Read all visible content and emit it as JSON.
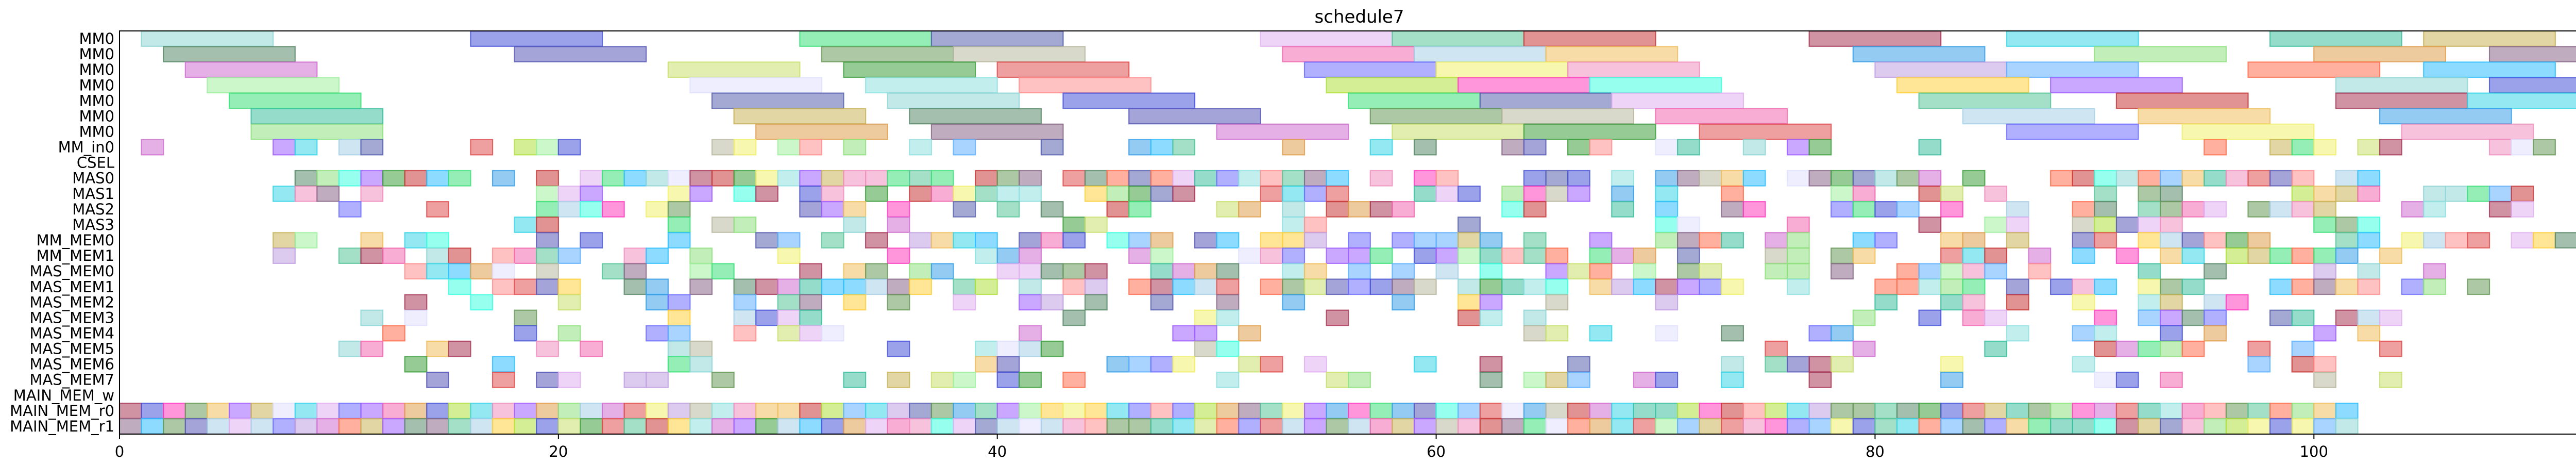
{
  "chart_data": {
    "type": "gantt",
    "title": "schedule7",
    "xlabel": "",
    "ylabel": "",
    "xlim": [
      0,
      113
    ],
    "x_ticks": [
      0,
      20,
      40,
      60,
      80,
      100
    ],
    "rows": [
      "MM0",
      "MM0",
      "MM0",
      "MM0",
      "MM0",
      "MM0",
      "MM0",
      "MM_in0",
      "CSEL",
      "MAS0",
      "MAS1",
      "MAS2",
      "MAS3",
      "MM_MEM0",
      "MM_MEM1",
      "MAS_MEM0",
      "MAS_MEM1",
      "MAS_MEM2",
      "MAS_MEM3",
      "MAS_MEM4",
      "MAS_MEM5",
      "MAS_MEM6",
      "MAS_MEM7",
      "MAIN_MEM_w",
      "MAIN_MEM_r0",
      "MAIN_MEM_r1"
    ],
    "grid": false,
    "palette": [
      "#8fd6d6",
      "#4a56d8",
      "#3ee07a",
      "#5a63b0",
      "#e0b0f0",
      "#5ac69a",
      "#c83a3a",
      "#a83a5a",
      "#3ad6e8",
      "#40c0a0",
      "#c8b45a",
      "#5a8a6a",
      "#5a5ab8",
      "#6a9a5a",
      "#b8b8a0",
      "#f06ab0",
      "#a8d0e8",
      "#f0c060",
      "#3aa0e8",
      "#90e080",
      "#e0a050",
      "#8a6a8a",
      "#d070d0",
      "#c8e070",
      "#40a040",
      "#e05050",
      "#7070ff",
      "#f0f070",
      "#f090c0",
      "#c0a0e0",
      "#60b0ff",
      "#ff7050",
      "#30c0ff",
      "#a0f0a0",
      "#e0e0ff",
      "#90e0e0",
      "#ff9090",
      "#b0e040",
      "#ff40c0",
      "#40ffe0",
      "#ffd040",
      "#a060ff"
    ],
    "series": [
      {
        "row": 0,
        "tasks": [
          [
            1,
            7,
            0
          ],
          [
            16,
            22,
            1
          ],
          [
            31,
            37,
            2
          ],
          [
            37,
            43,
            3
          ],
          [
            52,
            58,
            4
          ],
          [
            58,
            64,
            5
          ],
          [
            64,
            70,
            6
          ],
          [
            77,
            83,
            7
          ],
          [
            86,
            92,
            8
          ],
          [
            98,
            104,
            9
          ],
          [
            105,
            111,
            10
          ]
        ]
      },
      {
        "row": 1,
        "tasks": [
          [
            2,
            8,
            11
          ],
          [
            18,
            24,
            12
          ],
          [
            32,
            38,
            13
          ],
          [
            38,
            44,
            14
          ],
          [
            53,
            59,
            15
          ],
          [
            59,
            65,
            16
          ],
          [
            65,
            71,
            17
          ],
          [
            79,
            85,
            18
          ],
          [
            90,
            96,
            19
          ],
          [
            100,
            106,
            20
          ],
          [
            108,
            114,
            21
          ]
        ]
      },
      {
        "row": 2,
        "tasks": [
          [
            3,
            9,
            22
          ],
          [
            25,
            31,
            23
          ],
          [
            33,
            39,
            24
          ],
          [
            40,
            46,
            25
          ],
          [
            54,
            60,
            26
          ],
          [
            60,
            66,
            27
          ],
          [
            66,
            72,
            28
          ],
          [
            80,
            86,
            29
          ],
          [
            86,
            92,
            30
          ],
          [
            97,
            103,
            31
          ],
          [
            105,
            111,
            32
          ]
        ]
      },
      {
        "row": 3,
        "tasks": [
          [
            4,
            10,
            33
          ],
          [
            26,
            32,
            34
          ],
          [
            34,
            40,
            35
          ],
          [
            41,
            47,
            36
          ],
          [
            55,
            61,
            37
          ],
          [
            61,
            67,
            38
          ],
          [
            67,
            73,
            39
          ],
          [
            81,
            87,
            40
          ],
          [
            88,
            94,
            41
          ],
          [
            101,
            107,
            42
          ],
          [
            108,
            114,
            43
          ]
        ]
      },
      {
        "row": 4,
        "tasks": [
          [
            5,
            11,
            44
          ],
          [
            27,
            33,
            45
          ],
          [
            35,
            41,
            0
          ],
          [
            43,
            49,
            1
          ],
          [
            56,
            62,
            2
          ],
          [
            62,
            68,
            3
          ],
          [
            68,
            74,
            4
          ],
          [
            82,
            88,
            5
          ],
          [
            91,
            97,
            6
          ],
          [
            101,
            107,
            7
          ],
          [
            107,
            113,
            8
          ]
        ]
      },
      {
        "row": 5,
        "tasks": [
          [
            6,
            12,
            9
          ],
          [
            28,
            34,
            10
          ],
          [
            36,
            42,
            11
          ],
          [
            46,
            52,
            12
          ],
          [
            57,
            63,
            13
          ],
          [
            63,
            69,
            14
          ],
          [
            70,
            76,
            15
          ],
          [
            84,
            90,
            16
          ],
          [
            92,
            98,
            17
          ],
          [
            103,
            109,
            18
          ]
        ]
      },
      {
        "row": 6,
        "tasks": [
          [
            6,
            12,
            19
          ],
          [
            29,
            35,
            20
          ],
          [
            37,
            43,
            21
          ],
          [
            50,
            56,
            22
          ],
          [
            58,
            64,
            23
          ],
          [
            64,
            70,
            24
          ],
          [
            72,
            78,
            25
          ],
          [
            86,
            92,
            26
          ],
          [
            94,
            100,
            27
          ],
          [
            104,
            110,
            28
          ]
        ]
      }
    ]
  }
}
